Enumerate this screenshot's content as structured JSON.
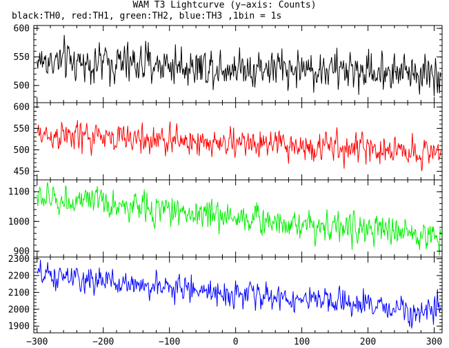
{
  "figure": {
    "title": "WAM T3 Lightcurve (y−axis: Counts)",
    "subtitle": "black:TH0, red:TH1, green:TH2, blue:TH3 ,1bin = 1s"
  },
  "chart_data": {
    "type": "line",
    "title": "WAM T3 Lightcurve (y−axis: Counts)",
    "xlim": [
      -305,
      312
    ],
    "x_ticks": [
      -300,
      -200,
      -100,
      0,
      100,
      200,
      300
    ],
    "x_tick_labels": [
      "−300",
      "−200",
      "−100",
      "0",
      "100",
      "200",
      "300"
    ],
    "bin_seconds": 1,
    "panels": [
      {
        "name": "TH0",
        "color": "#000000",
        "ylim": [
          470,
          605
        ],
        "y_ticks": [
          500,
          550,
          600
        ],
        "trend_x": [
          -300,
          300
        ],
        "trend_y": [
          543,
          522
        ],
        "noise_amplitude": 22
      },
      {
        "name": "TH1",
        "color": "#ff0000",
        "ylim": [
          430,
          610
        ],
        "y_ticks": [
          450,
          500,
          550,
          600
        ],
        "trend_x": [
          -300,
          300
        ],
        "trend_y": [
          535,
          495
        ],
        "noise_amplitude": 22
      },
      {
        "name": "TH2",
        "color": "#00ee00",
        "ylim": [
          880,
          1140
        ],
        "y_ticks": [
          900,
          1000,
          1100
        ],
        "trend_x": [
          -300,
          300
        ],
        "trend_y": [
          1080,
          950
        ],
        "noise_amplitude": 32
      },
      {
        "name": "TH3",
        "color": "#0000ff",
        "ylim": [
          1860,
          2310
        ],
        "y_ticks": [
          1900,
          2000,
          2100,
          2200,
          2300
        ],
        "trend_x": [
          -300,
          300
        ],
        "trend_y": [
          2200,
          1985
        ],
        "noise_amplitude": 48
      }
    ]
  }
}
